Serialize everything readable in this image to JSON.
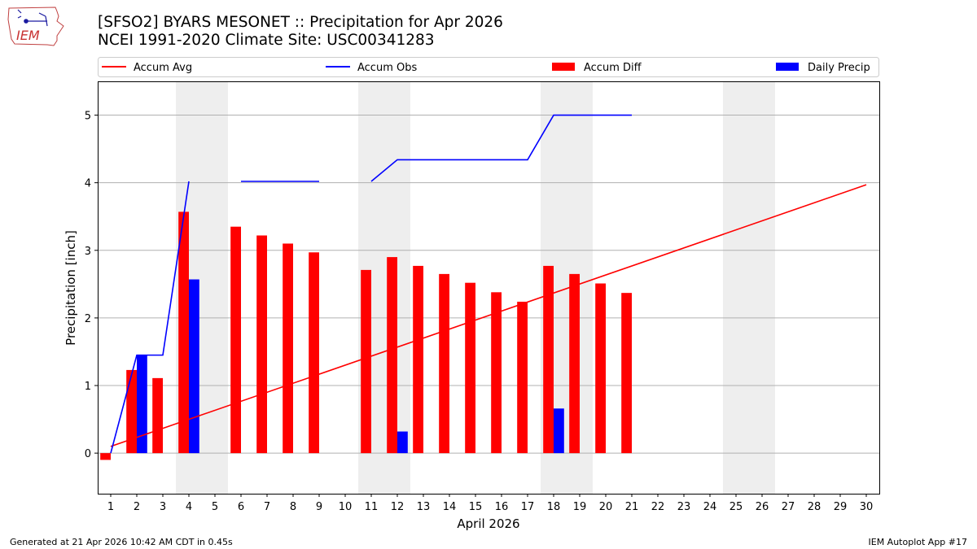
{
  "header": {
    "logo_text": "IEM",
    "title_line1": "[SFSO2] BYARS MESONET :: Precipitation for Apr 2026",
    "title_line2": "NCEI 1991-2020 Climate Site: USC00341283"
  },
  "footer": {
    "generated": "Generated at 21 Apr 2026 10:42 AM CDT in 0.45s",
    "app": "IEM Autoplot App #17"
  },
  "colors": {
    "avg": "#ff0000",
    "obs": "#0000ff",
    "diff": "#ff0000",
    "daily": "#0000ff",
    "weekend_shade": "#eeeeee",
    "grid": "#b0b0b0"
  },
  "chart_data": {
    "type": "bar",
    "xlabel": "April 2026",
    "ylabel": "Precipitation [inch]",
    "xlim": [
      0.5,
      30.5
    ],
    "ylim": [
      -0.6,
      5.5
    ],
    "x_ticks": [
      1,
      2,
      3,
      4,
      5,
      6,
      7,
      8,
      9,
      10,
      11,
      12,
      13,
      14,
      15,
      16,
      17,
      18,
      19,
      20,
      21,
      22,
      23,
      24,
      25,
      26,
      27,
      28,
      29,
      30
    ],
    "y_ticks": [
      0,
      1,
      2,
      3,
      4,
      5
    ],
    "grid": "y",
    "legend_position": "top",
    "legend": [
      {
        "name": "Accum Avg",
        "kind": "line",
        "color_key": "avg"
      },
      {
        "name": "Accum Obs",
        "kind": "line",
        "color_key": "obs"
      },
      {
        "name": "Accum Diff",
        "kind": "bar",
        "color_key": "diff"
      },
      {
        "name": "Daily Precip",
        "kind": "bar",
        "color_key": "daily"
      }
    ],
    "shaded_days": [
      [
        4,
        5
      ],
      [
        11,
        12
      ],
      [
        18,
        19
      ],
      [
        25,
        26
      ]
    ],
    "accum_avg": {
      "days": [
        1,
        30
      ],
      "values": [
        0.1,
        3.97
      ]
    },
    "accum_obs": {
      "segments": [
        {
          "days": [
            1,
            2,
            3,
            4
          ],
          "values": [
            0.0,
            1.45,
            1.45,
            4.02
          ]
        },
        {
          "days": [
            6,
            7,
            8,
            9
          ],
          "values": [
            4.02,
            4.02,
            4.02,
            4.02
          ]
        },
        {
          "days": [
            11,
            12,
            13,
            14,
            15,
            16,
            17,
            18,
            19,
            20,
            21
          ],
          "values": [
            4.02,
            4.34,
            4.34,
            4.34,
            4.34,
            4.34,
            4.34,
            5.0,
            5.0,
            5.0,
            5.0
          ]
        }
      ]
    },
    "accum_diff": {
      "days": [
        1,
        2,
        3,
        4,
        6,
        7,
        8,
        9,
        11,
        12,
        13,
        14,
        15,
        16,
        17,
        18,
        19,
        20,
        21
      ],
      "values": [
        -0.1,
        1.23,
        1.11,
        3.57,
        3.35,
        3.22,
        3.1,
        2.97,
        2.71,
        2.9,
        2.77,
        2.65,
        2.52,
        2.38,
        2.24,
        2.77,
        2.65,
        2.51,
        2.37
      ]
    },
    "daily_precip": {
      "days": [
        2,
        4,
        12,
        18
      ],
      "values": [
        1.45,
        2.57,
        0.32,
        0.66
      ]
    }
  }
}
